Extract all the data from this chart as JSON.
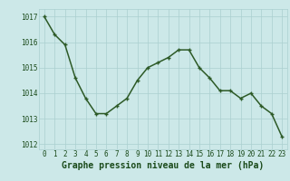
{
  "x": [
    0,
    1,
    2,
    3,
    4,
    5,
    6,
    7,
    8,
    9,
    10,
    11,
    12,
    13,
    14,
    15,
    16,
    17,
    18,
    19,
    20,
    21,
    22,
    23
  ],
  "y": [
    1017.0,
    1016.3,
    1015.9,
    1014.6,
    1013.8,
    1013.2,
    1013.2,
    1013.5,
    1013.8,
    1014.5,
    1015.0,
    1015.2,
    1015.4,
    1015.7,
    1015.7,
    1015.0,
    1014.6,
    1014.1,
    1014.1,
    1013.8,
    1014.0,
    1013.5,
    1013.2,
    1012.3
  ],
  "line_color": "#2d5a27",
  "marker": "+",
  "marker_color": "#2d5a27",
  "bg_color": "#cce8e8",
  "grid_color": "#aacfcf",
  "xlabel": "Graphe pression niveau de la mer (hPa)",
  "label_color": "#1a4a1a",
  "ylim": [
    1011.8,
    1017.3
  ],
  "yticks": [
    1012,
    1013,
    1014,
    1015,
    1016,
    1017
  ],
  "xticks": [
    0,
    1,
    2,
    3,
    4,
    5,
    6,
    7,
    8,
    9,
    10,
    11,
    12,
    13,
    14,
    15,
    16,
    17,
    18,
    19,
    20,
    21,
    22,
    23
  ],
  "tick_label_fontsize": 5.5,
  "xlabel_fontsize": 7.0,
  "line_width": 1.1,
  "marker_size": 3.5
}
